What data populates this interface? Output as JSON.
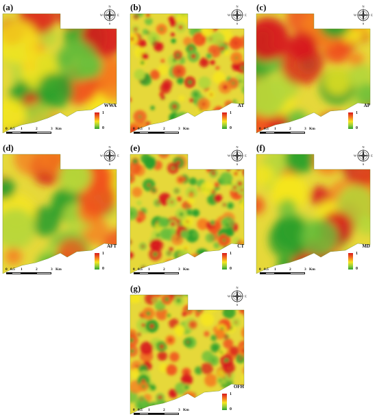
{
  "panels": [
    {
      "id": "a",
      "label": "(a)",
      "layer": "WWA"
    },
    {
      "id": "b",
      "label": "(b)",
      "layer": "AT"
    },
    {
      "id": "c",
      "label": "(c)",
      "layer": "AP"
    },
    {
      "id": "d",
      "label": "(d)",
      "layer": "AFT"
    },
    {
      "id": "e",
      "label": "(e)",
      "layer": "CT"
    },
    {
      "id": "f",
      "label": "(f)",
      "layer": "MD"
    },
    {
      "id": "g",
      "label": "(g)",
      "layer": "OFH"
    }
  ],
  "legend": {
    "high": "1",
    "low": "0",
    "colors": {
      "high": "#d7191c",
      "mid": "#f5e51f",
      "low": "#2ca02c"
    }
  },
  "scale": {
    "ticks": [
      "0",
      "0.5",
      "1",
      "2",
      "3"
    ],
    "unit": "Km"
  },
  "compass": {
    "n": "N",
    "s": "S",
    "e": "E",
    "w": "W"
  }
}
